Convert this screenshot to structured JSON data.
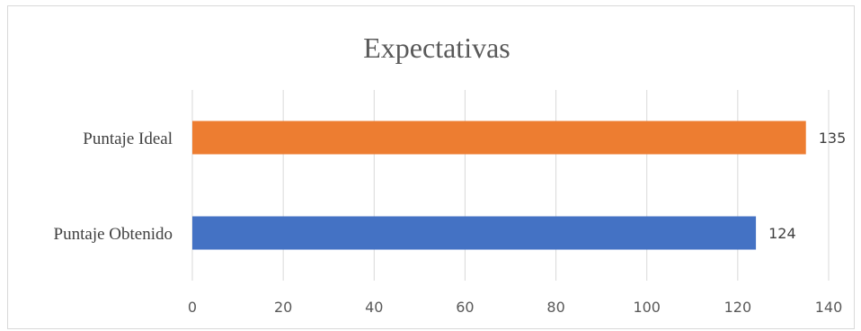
{
  "chart_data": {
    "type": "bar",
    "orientation": "horizontal",
    "title": "Expectativas",
    "categories": [
      "Puntaje Obtenido",
      "Puntaje Ideal"
    ],
    "series": [
      {
        "values": [
          124,
          135
        ],
        "colors": [
          "#4472c4",
          "#ed7d31"
        ]
      }
    ],
    "xlim": [
      0,
      140
    ],
    "xticks": [
      0,
      20,
      40,
      60,
      80,
      100,
      120,
      140
    ],
    "grid": true,
    "legend": "none",
    "data_labels": true
  }
}
